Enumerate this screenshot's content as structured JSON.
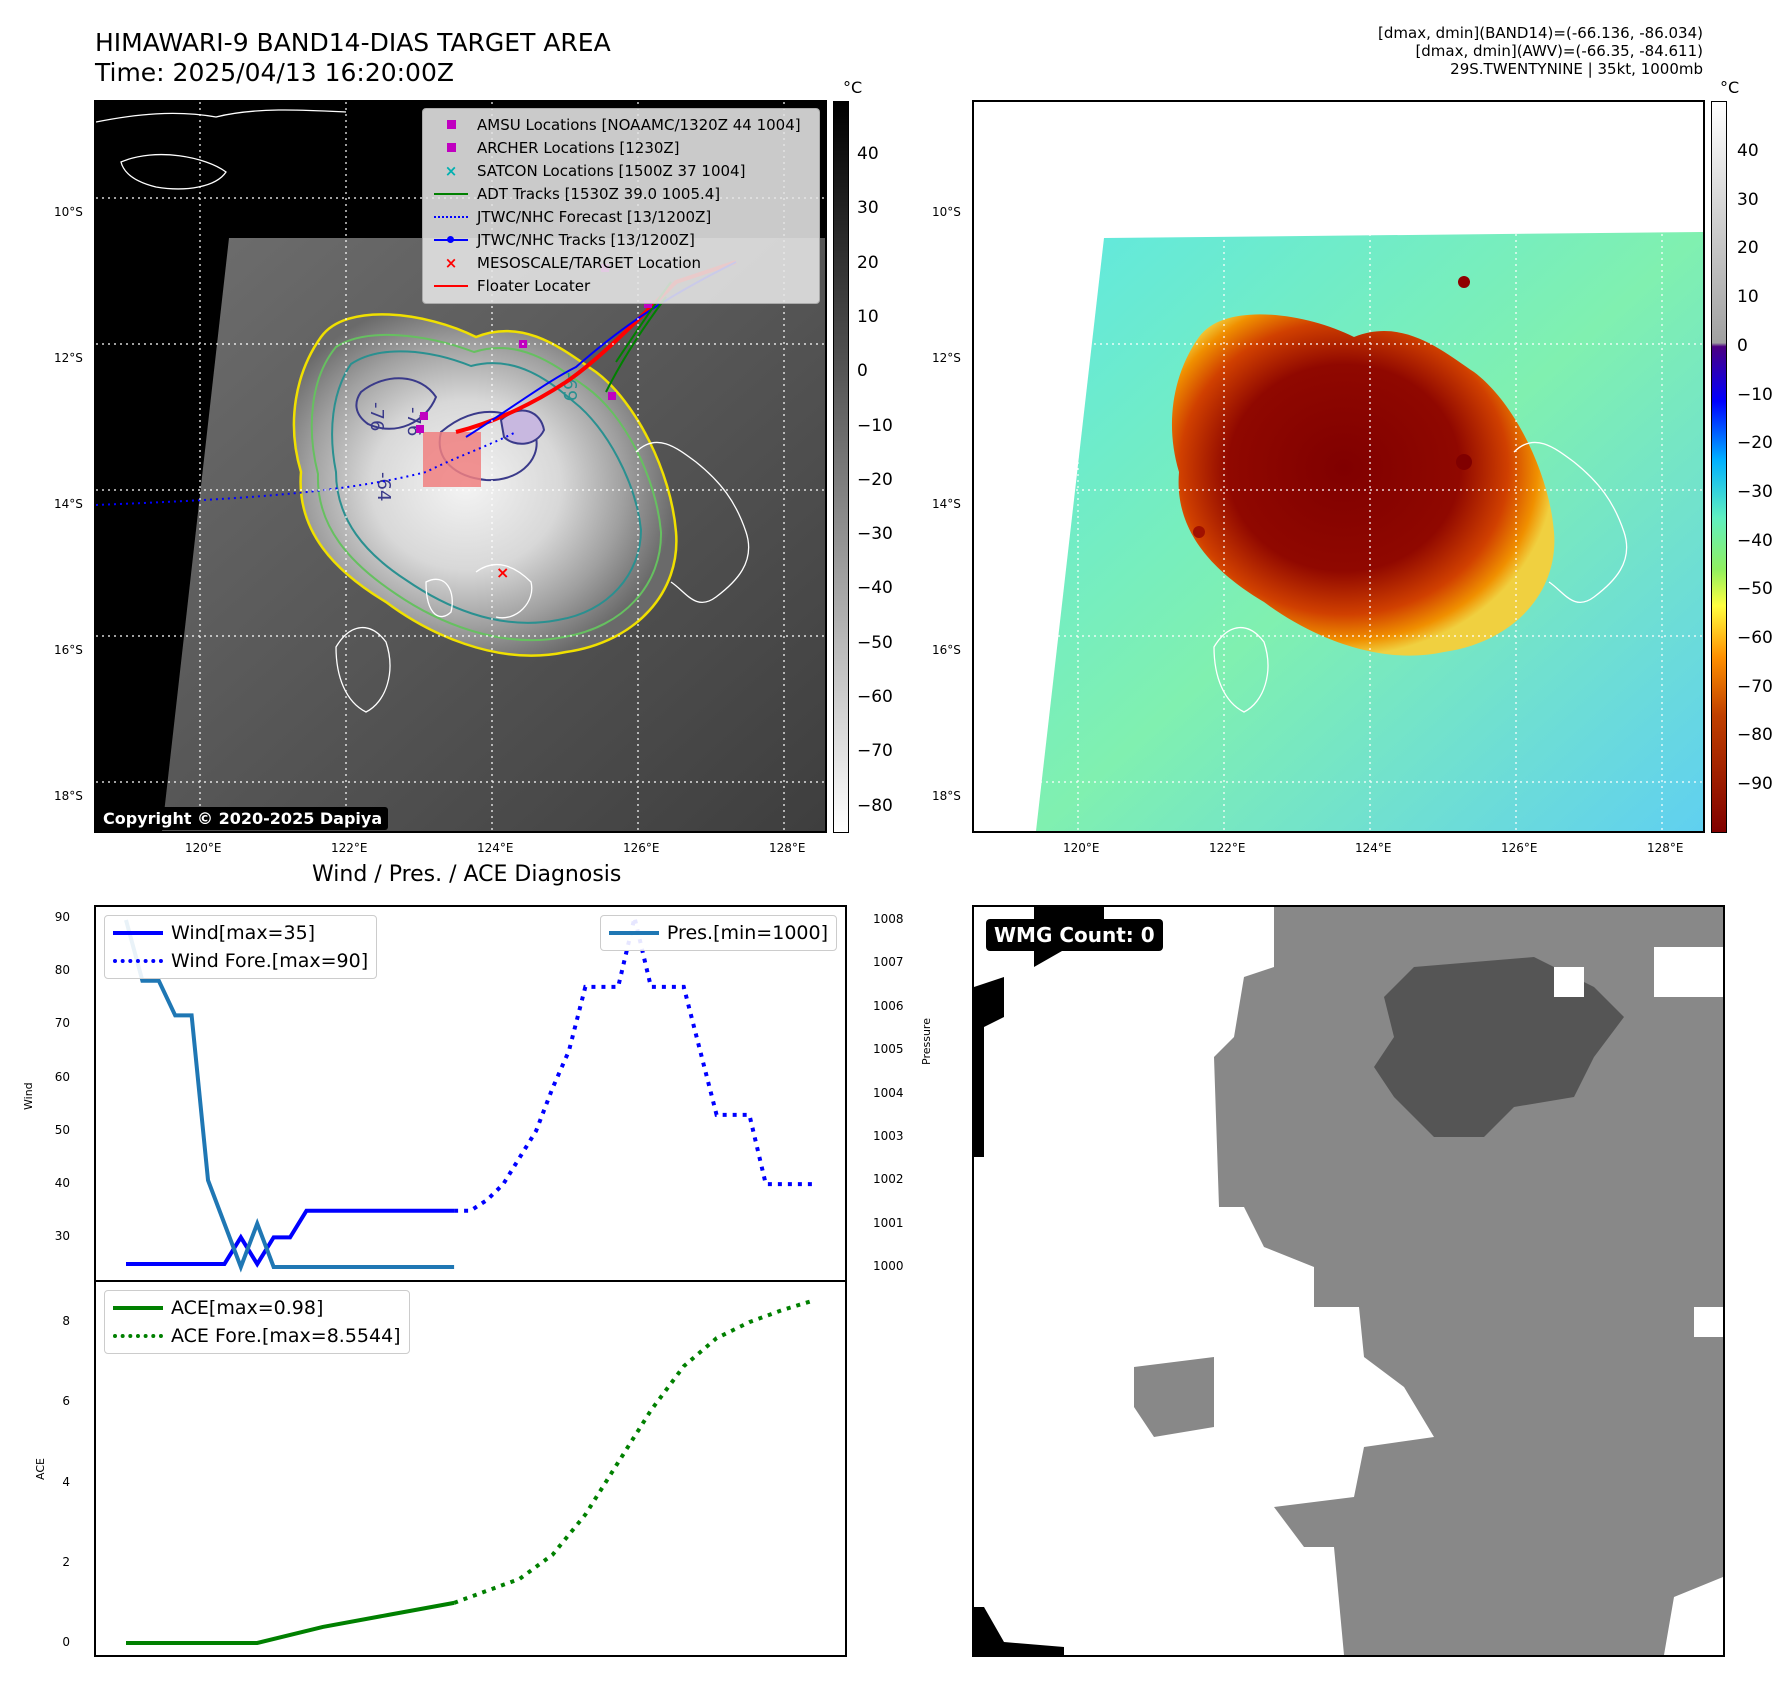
{
  "header": {
    "title": "HIMAWARI-9 BAND14-DIAS TARGET AREA",
    "time": "Time: 2025/04/13 16:20:00Z",
    "info_line1": "[dmax, dmin](BAND14)=(-66.136, -86.034)",
    "info_line2": "[dmax, dmin](AWV)=(-66.35, -84.611)",
    "info_line3": "29S.TWENTYNINE | 35kt, 1000mb"
  },
  "ir_map": {
    "lat_labels": [
      "10°S",
      "12°S",
      "14°S",
      "16°S",
      "18°S"
    ],
    "lon_labels": [
      "120°E",
      "122°E",
      "124°E",
      "126°E",
      "128°E"
    ],
    "copyright": "Copyright © 2020-2025 Dapiya",
    "legend": [
      {
        "label": "AMSU Locations [NOAAMC/1320Z 44 1004]",
        "symbol": "square",
        "color": "#c000c0"
      },
      {
        "label": "ARCHER Locations [1230Z]",
        "symbol": "square",
        "color": "#c000c0"
      },
      {
        "label": "SATCON Locations [1500Z 37 1004]",
        "symbol": "x",
        "color": "#00b0b0"
      },
      {
        "label": "ADT Tracks [1530Z 39.0 1005.4]",
        "symbol": "line",
        "color": "#008000"
      },
      {
        "label": "JTWC/NHC Forecast [13/1200Z]",
        "symbol": "dotted",
        "color": "#0000ff"
      },
      {
        "label": "JTWC/NHC Tracks [13/1200Z]",
        "symbol": "line-dot",
        "color": "#0000ff"
      },
      {
        "label": "MESOSCALE/TARGET Location",
        "symbol": "x",
        "color": "#ff0000"
      },
      {
        "label": "Floater Locater",
        "symbol": "line",
        "color": "#ff0000"
      }
    ],
    "contour_labels": [
      "-76",
      "-76",
      "-64",
      "-69",
      "-54",
      "-64"
    ],
    "colorbar_unit": "°C",
    "colorbar_ticks": [
      "40",
      "30",
      "20",
      "10",
      "0",
      "−10",
      "−20",
      "−30",
      "−40",
      "−50",
      "−60",
      "−70",
      "−80"
    ]
  },
  "awv_map": {
    "lat_labels": [
      "10°S",
      "12°S",
      "14°S",
      "16°S",
      "18°S"
    ],
    "lon_labels": [
      "120°E",
      "122°E",
      "124°E",
      "126°E",
      "128°E"
    ],
    "colorbar_unit": "°C",
    "colorbar_ticks": [
      "40",
      "30",
      "20",
      "10",
      "0",
      "−10",
      "−20",
      "−30",
      "−40",
      "−50",
      "−60",
      "−70",
      "−80",
      "−90"
    ]
  },
  "diagnosis": {
    "title": "Wind / Pres. / ACE Diagnosis",
    "wind_ylabel": "Wind",
    "pres_ylabel": "Pressure",
    "ace_ylabel": "ACE",
    "wind_legend": [
      "Wind[max=35]",
      "Wind Fore.[max=90]"
    ],
    "pres_legend": [
      "Pres.[min=1000]"
    ],
    "ace_legend": [
      "ACE[max=0.98]",
      "ACE Fore.[max=8.5544]"
    ],
    "wind_ticks": [
      "90",
      "80",
      "70",
      "60",
      "50",
      "40",
      "30"
    ],
    "pres_ticks": [
      "1008",
      "1007",
      "1006",
      "1005",
      "1004",
      "1003",
      "1002",
      "1001",
      "1000"
    ],
    "ace_ticks": [
      "8",
      "6",
      "4",
      "2",
      "0"
    ]
  },
  "wmg": {
    "label": "WMG Count: 0"
  },
  "chart_data": [
    {
      "type": "line",
      "title": "Wind / Pres. / ACE Diagnosis",
      "xlabel": "",
      "ylabel": "Wind",
      "ylim": [
        22,
        92
      ],
      "series": [
        {
          "name": "Wind[max=35]",
          "color": "#0000ff",
          "style": "solid",
          "x": [
            0,
            1,
            2,
            3,
            4,
            5,
            6,
            7,
            8,
            9,
            10,
            11,
            12,
            13,
            14,
            15,
            16,
            17,
            18,
            19,
            20
          ],
          "values": [
            25,
            25,
            25,
            25,
            25,
            25,
            25,
            30,
            25,
            30,
            30,
            35,
            35,
            35,
            35,
            35,
            35,
            35,
            35,
            35,
            35
          ]
        },
        {
          "name": "Wind Fore.[max=90]",
          "color": "#0000ff",
          "style": "dotted",
          "x": [
            20,
            21,
            22,
            23,
            24,
            25,
            26,
            27,
            28,
            29,
            30,
            31,
            32,
            33,
            34,
            35,
            36,
            37,
            38,
            39,
            40,
            41,
            42
          ],
          "values": [
            35,
            35,
            37,
            40,
            45,
            50,
            58,
            65,
            77,
            77,
            77,
            90,
            77,
            77,
            77,
            65,
            53,
            53,
            53,
            40,
            40,
            40,
            40
          ]
        },
        {
          "name": "Pres.[min=1000]",
          "color": "#1f77b4",
          "style": "solid",
          "axis": "right",
          "ylim": [
            999.7,
            1008.3
          ],
          "x": [
            0,
            1,
            2,
            3,
            4,
            5,
            6,
            7,
            8,
            9,
            10,
            11,
            12,
            13,
            14,
            15,
            16,
            17,
            18,
            19,
            20
          ],
          "values": [
            1008,
            1006.6,
            1006.6,
            1005.8,
            1005.8,
            1002,
            1001,
            1000,
            1001,
            1000,
            1000,
            1000,
            1000,
            1000,
            1000,
            1000,
            1000,
            1000,
            1000,
            1000,
            1000
          ]
        }
      ]
    },
    {
      "type": "line",
      "title": "",
      "xlabel": "",
      "ylabel": "ACE",
      "ylim": [
        -0.3,
        9
      ],
      "series": [
        {
          "name": "ACE[max=0.98]",
          "color": "#008000",
          "style": "solid",
          "x": [
            0,
            4,
            8,
            12,
            16,
            20
          ],
          "values": [
            0,
            0,
            0,
            0.4,
            0.7,
            1.0
          ]
        },
        {
          "name": "ACE Fore.[max=8.5544]",
          "color": "#008000",
          "style": "dotted",
          "x": [
            20,
            22,
            24,
            26,
            28,
            30,
            32,
            34,
            36,
            38,
            40,
            42
          ],
          "values": [
            1.0,
            1.3,
            1.6,
            2.2,
            3.2,
            4.5,
            5.8,
            6.9,
            7.6,
            8.0,
            8.3,
            8.55
          ]
        }
      ]
    }
  ]
}
